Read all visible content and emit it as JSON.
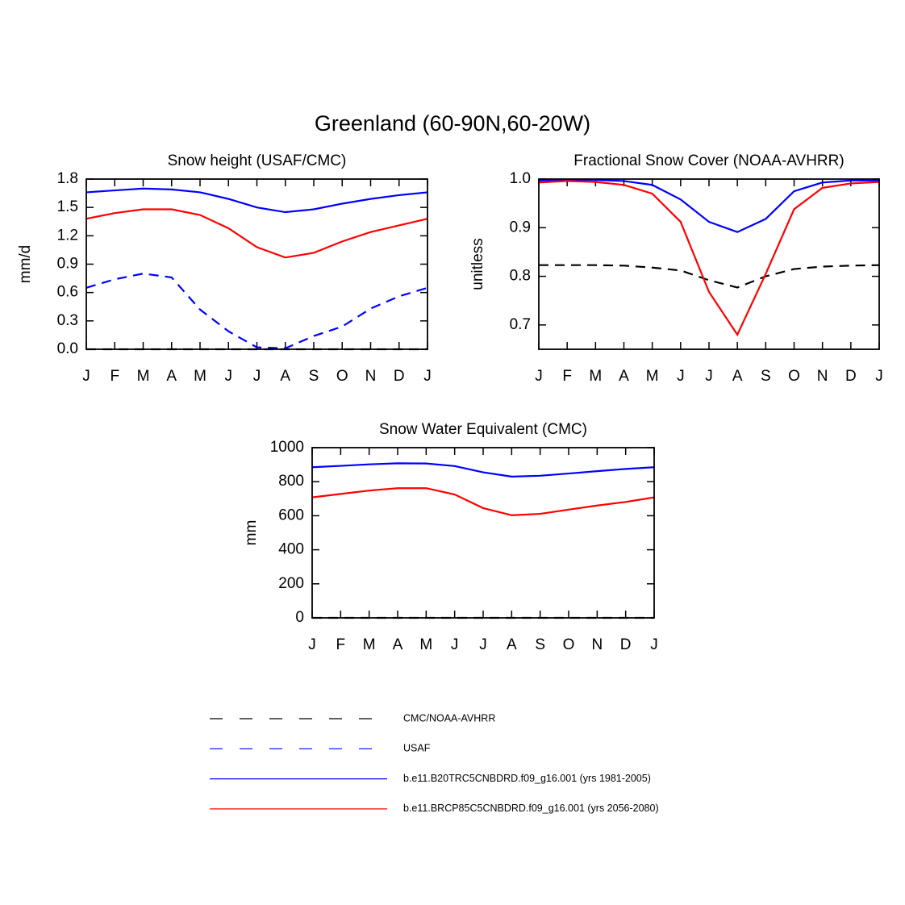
{
  "title": "Greenland (60-90N,60-20W)",
  "chart_data": [
    {
      "type": "line",
      "title": "Snow height (USAF/CMC)",
      "ylabel": "mm/d",
      "categories": [
        "J",
        "F",
        "M",
        "A",
        "M",
        "J",
        "J",
        "A",
        "S",
        "O",
        "N",
        "D",
        "J"
      ],
      "ylim": [
        0,
        1.8
      ],
      "yticks": [
        {
          "value": 0,
          "label": "0.0"
        },
        0.3,
        0.6,
        0.9,
        1.2,
        1.5,
        1.8
      ],
      "series": [
        {
          "name": "CMC/NOAA-AVHRR",
          "color": "#000000",
          "dashed": true,
          "values": [
            0,
            0,
            0,
            0,
            0,
            0,
            0,
            0,
            0,
            0,
            0,
            0,
            0
          ]
        },
        {
          "name": "USAF",
          "color": "#0000ff",
          "dashed": true,
          "values": [
            0.65,
            0.74,
            0.8,
            0.76,
            0.42,
            0.19,
            0.02,
            0.01,
            0.14,
            0.24,
            0.43,
            0.56,
            0.65
          ]
        },
        {
          "name": "b.e11.B20TRC5CNBDRD.f09_g16.001 (yrs 1981-2005)",
          "color": "#0000ff",
          "dashed": false,
          "values": [
            1.66,
            1.68,
            1.7,
            1.69,
            1.66,
            1.59,
            1.5,
            1.45,
            1.48,
            1.54,
            1.59,
            1.63,
            1.66
          ]
        },
        {
          "name": "b.e11.BRCP85C5CNBDRD.f09_g16.001 (yrs 2056-2080)",
          "color": "#ff0000",
          "dashed": false,
          "values": [
            1.38,
            1.44,
            1.48,
            1.48,
            1.42,
            1.28,
            1.08,
            0.97,
            1.02,
            1.14,
            1.24,
            1.31,
            1.38
          ]
        }
      ]
    },
    {
      "type": "line",
      "title": "Fractional Snow Cover (NOAA-AVHRR)",
      "ylabel": "unitless",
      "categories": [
        "J",
        "F",
        "M",
        "A",
        "M",
        "J",
        "J",
        "A",
        "S",
        "O",
        "N",
        "D",
        "J"
      ],
      "ylim": [
        0.65,
        1.0
      ],
      "yticks": [
        0.7,
        0.8,
        0.9,
        {
          "value": 1.0,
          "label": "1.0"
        }
      ],
      "series": [
        {
          "name": "CMC/NOAA-AVHRR",
          "color": "#000000",
          "dashed": true,
          "values": [
            0.823,
            0.823,
            0.823,
            0.822,
            0.818,
            0.812,
            0.792,
            0.777,
            0.8,
            0.815,
            0.82,
            0.822,
            0.823
          ]
        },
        {
          "name": "b.e11.B20TRC5CNBDRD.f09_g16.001 (yrs 1981-2005)",
          "color": "#0000ff",
          "dashed": false,
          "values": [
            0.997,
            0.998,
            0.998,
            0.996,
            0.988,
            0.958,
            0.912,
            0.891,
            0.918,
            0.975,
            0.993,
            0.997,
            0.997
          ]
        },
        {
          "name": "b.e11.BRCP85C5CNBDRD.f09_g16.001 (yrs 2056-2080)",
          "color": "#ff0000",
          "dashed": false,
          "values": [
            0.993,
            0.996,
            0.994,
            0.988,
            0.97,
            0.912,
            0.768,
            0.68,
            0.805,
            0.938,
            0.982,
            0.991,
            0.994
          ]
        }
      ]
    },
    {
      "type": "line",
      "title": "Snow Water Equivalent (CMC)",
      "ylabel": "mm",
      "categories": [
        "J",
        "F",
        "M",
        "A",
        "M",
        "J",
        "J",
        "A",
        "S",
        "O",
        "N",
        "D",
        "J"
      ],
      "ylim": [
        0,
        1000
      ],
      "yticks": [
        0,
        200,
        400,
        600,
        800,
        1000
      ],
      "series": [
        {
          "name": "CMC/NOAA-AVHRR",
          "color": "#000000",
          "dashed": true,
          "values": [
            0,
            0,
            0,
            0,
            0,
            0,
            0,
            0,
            0,
            0,
            0,
            0,
            0
          ]
        },
        {
          "name": "b.e11.B20TRC5CNBDRD.f09_g16.001 (yrs 1981-2005)",
          "color": "#0000ff",
          "dashed": false,
          "values": [
            885,
            893,
            902,
            908,
            907,
            892,
            855,
            830,
            835,
            848,
            862,
            875,
            885
          ]
        },
        {
          "name": "b.e11.BRCP85C5CNBDRD.f09_g16.001 (yrs 2056-2080)",
          "color": "#ff0000",
          "dashed": false,
          "values": [
            708,
            728,
            748,
            762,
            762,
            725,
            645,
            603,
            611,
            636,
            660,
            681,
            708
          ]
        }
      ]
    }
  ]
}
